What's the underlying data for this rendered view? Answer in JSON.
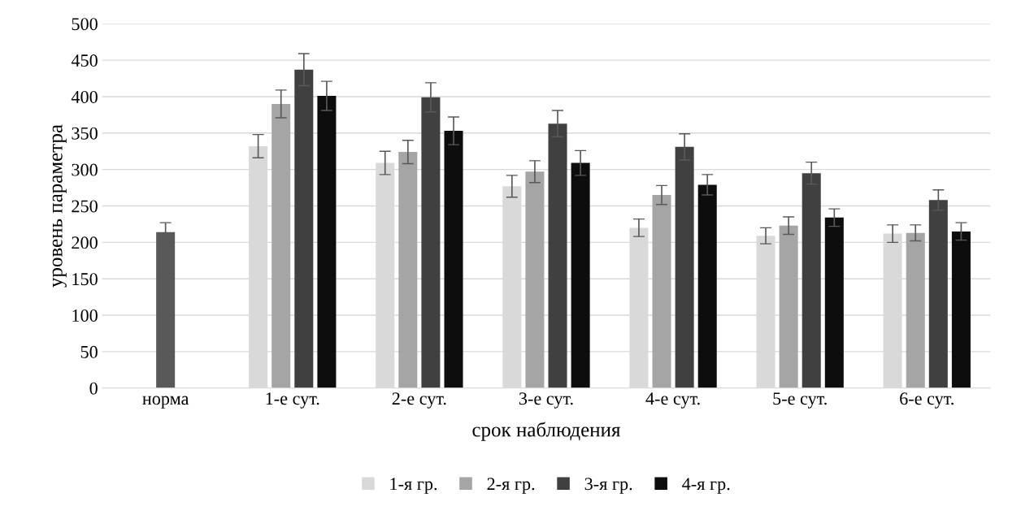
{
  "chart_data": {
    "type": "bar",
    "xlabel": "срок наблюдения",
    "ylabel": "уровень параметра",
    "categories": [
      "норма",
      "1-е сут.",
      "2-е сут.",
      "3-е сут.",
      "4-е сут.",
      "5-е сут.",
      "6-е сут."
    ],
    "series": [
      {
        "color": "#595959",
        "values": [
          214,
          null,
          null,
          null,
          null,
          null,
          null
        ],
        "errors": [
          13,
          null,
          null,
          null,
          null,
          null,
          null
        ]
      },
      {
        "name": "1-я гр.",
        "color": "#d9d9d9",
        "values": [
          null,
          332,
          309,
          277,
          220,
          209,
          212
        ],
        "errors": [
          null,
          16,
          16,
          15,
          12,
          11,
          12
        ]
      },
      {
        "name": "2-я гр.",
        "color": "#a5a5a5",
        "values": [
          null,
          390,
          324,
          297,
          265,
          223,
          213
        ],
        "errors": [
          null,
          19,
          16,
          15,
          13,
          12,
          11
        ]
      },
      {
        "name": "3-я гр.",
        "color": "#404040",
        "values": [
          null,
          437,
          399,
          363,
          331,
          295,
          258
        ],
        "errors": [
          null,
          22,
          20,
          18,
          18,
          15,
          14
        ]
      },
      {
        "name": "4-я гр.",
        "color": "#0d0d0d",
        "values": [
          null,
          401,
          353,
          309,
          279,
          234,
          215
        ],
        "errors": [
          null,
          20,
          19,
          17,
          14,
          12,
          12
        ]
      }
    ],
    "ylim": [
      0,
      500
    ],
    "yticks": [
      0,
      50,
      100,
      150,
      200,
      250,
      300,
      350,
      400,
      450,
      500
    ],
    "grid": "y",
    "legend": "bottom"
  }
}
